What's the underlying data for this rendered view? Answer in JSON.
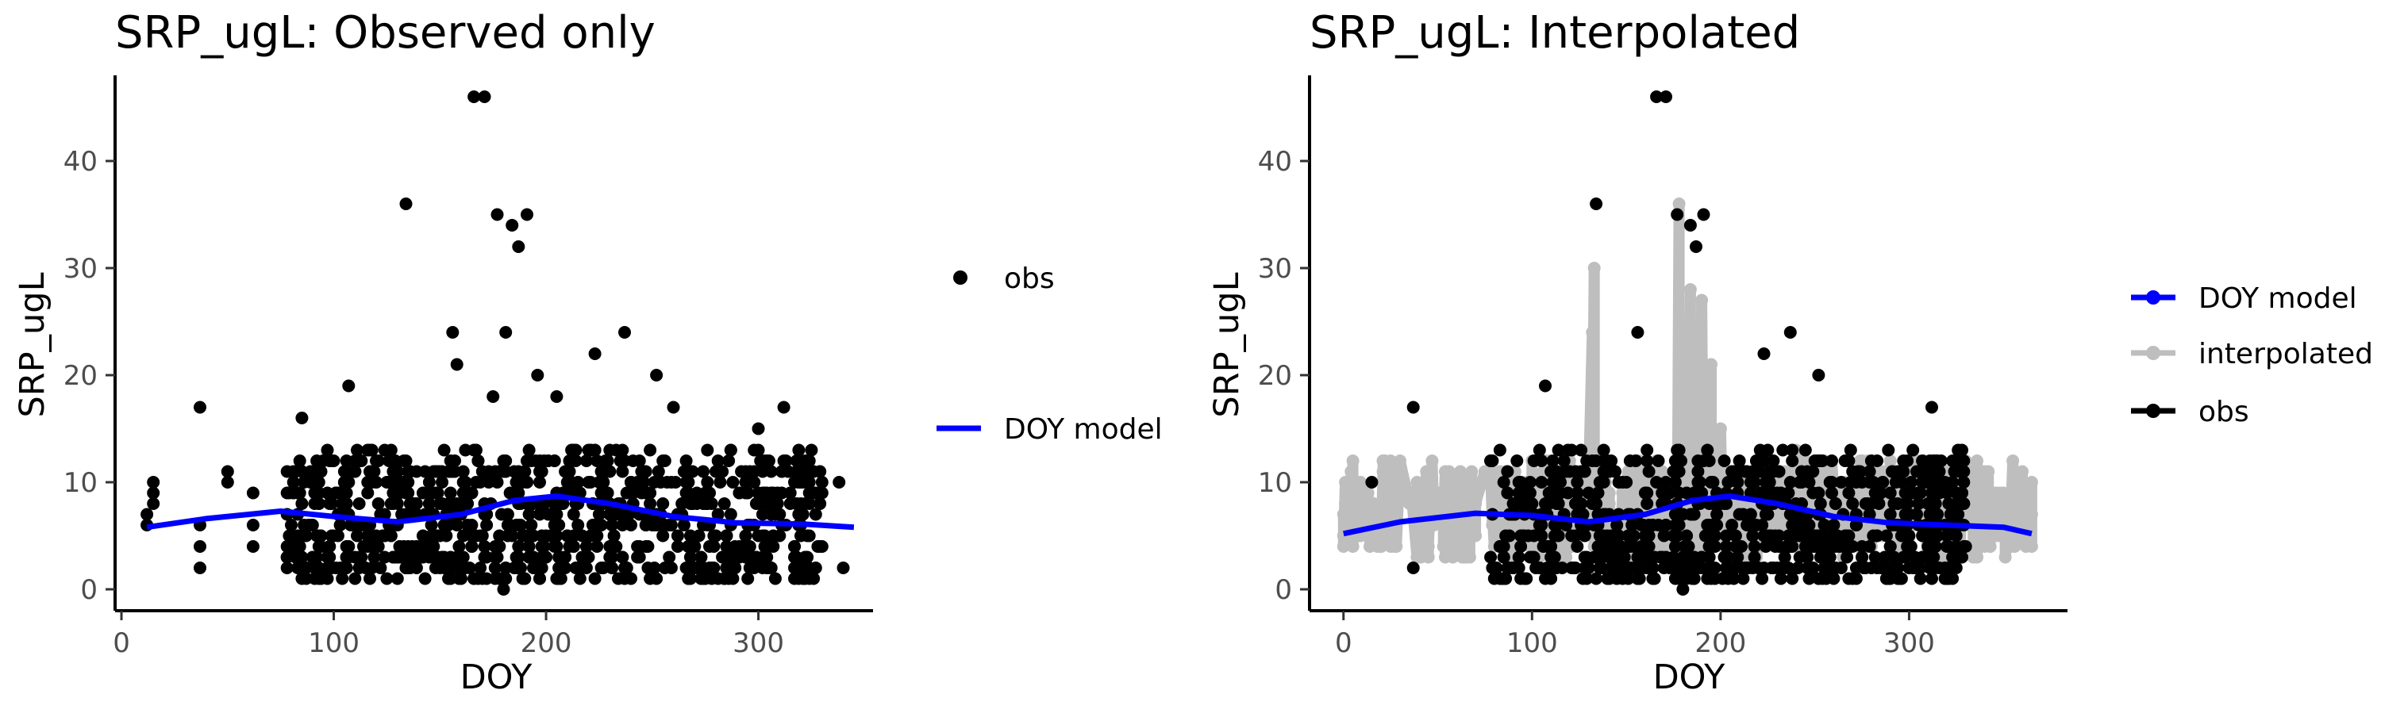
{
  "chart_data": [
    {
      "type": "scatter",
      "title": "SRP_ugL: Observed only",
      "xlabel": "DOY",
      "ylabel": "SRP_ugL",
      "xlim": [
        -3,
        354
      ],
      "ylim": [
        -2,
        48
      ],
      "x_ticks": [
        0,
        100,
        200,
        300
      ],
      "y_ticks": [
        0,
        10,
        20,
        30,
        40
      ],
      "grid": false,
      "legend_position": "right",
      "legend": [
        {
          "label": "obs",
          "kind": "point",
          "color": "#000000"
        },
        {
          "label": "DOY model",
          "kind": "line",
          "color": "#0000ff"
        }
      ],
      "series": [
        {
          "name": "obs",
          "color": "#000000",
          "points": [
            [
              12,
              6
            ],
            [
              12,
              7
            ],
            [
              15,
              8
            ],
            [
              15,
              9
            ],
            [
              15,
              10
            ],
            [
              37,
              2
            ],
            [
              37,
              4
            ],
            [
              37,
              6
            ],
            [
              37,
              17
            ],
            [
              50,
              11
            ],
            [
              50,
              10
            ],
            [
              62,
              9
            ],
            [
              62,
              4
            ],
            [
              62,
              6
            ],
            [
              78,
              3
            ],
            [
              78,
              9
            ],
            [
              85,
              16
            ],
            [
              98,
              4
            ],
            [
              100,
              12
            ],
            [
              107,
              19
            ],
            [
              134,
              36
            ],
            [
              156,
              24
            ],
            [
              158,
              21
            ],
            [
              166,
              46
            ],
            [
              171,
              46
            ],
            [
              177,
              35
            ],
            [
              184,
              34
            ],
            [
              187,
              32
            ],
            [
              191,
              35
            ],
            [
              181,
              24
            ],
            [
              223,
              22
            ],
            [
              237,
              24
            ],
            [
              252,
              20
            ],
            [
              312,
              17
            ],
            [
              338,
              10
            ],
            [
              340,
              2
            ],
            [
              180,
              0
            ],
            [
              196,
              20
            ],
            [
              175,
              18
            ],
            [
              205,
              18
            ],
            [
              260,
              17
            ],
            [
              300,
              15
            ]
          ],
          "band": {
            "x_from": 78,
            "x_to": 330,
            "y_from": 1,
            "y_to": 13,
            "n": 900
          }
        },
        {
          "name": "DOY model",
          "color": "#0000ff",
          "points": [
            [
              12,
              5.8
            ],
            [
              40,
              6.6
            ],
            [
              75,
              7.3
            ],
            [
              100,
              6.8
            ],
            [
              130,
              6.3
            ],
            [
              160,
              7.0
            ],
            [
              185,
              8.3
            ],
            [
              205,
              8.7
            ],
            [
              230,
              8.0
            ],
            [
              260,
              6.8
            ],
            [
              290,
              6.2
            ],
            [
              320,
              6.1
            ],
            [
              345,
              5.8
            ]
          ]
        }
      ]
    },
    {
      "type": "scatter",
      "title": "SRP_ugL: Interpolated",
      "xlabel": "DOY",
      "ylabel": "SRP_ugL",
      "xlim": [
        -18,
        384
      ],
      "ylim": [
        -2,
        48
      ],
      "x_ticks": [
        0,
        100,
        200,
        300
      ],
      "y_ticks": [
        0,
        10,
        20,
        30,
        40
      ],
      "grid": false,
      "legend_position": "right",
      "legend": [
        {
          "label": "DOY model",
          "kind": "line-point",
          "color": "#0000ff"
        },
        {
          "label": "interpolated",
          "kind": "line-point",
          "color": "#bebebe"
        },
        {
          "label": "obs",
          "kind": "line-point",
          "color": "#000000"
        }
      ],
      "series": [
        {
          "name": "interpolated",
          "color": "#bebebe",
          "points": [
            [
              0,
              5
            ],
            [
              0,
              7
            ],
            [
              0,
              4
            ],
            [
              5,
              6
            ],
            [
              20,
              6
            ],
            [
              60,
              8
            ],
            [
              90,
              7
            ],
            [
              133,
              30
            ],
            [
              132,
              24
            ],
            [
              178,
              36
            ],
            [
              184,
              28
            ],
            [
              190,
              27
            ],
            [
              195,
              21
            ],
            [
              180,
              17
            ],
            [
              200,
              15
            ],
            [
              240,
              13
            ],
            [
              295,
              10
            ],
            [
              340,
              6
            ],
            [
              360,
              5
            ],
            [
              365,
              7
            ],
            [
              365,
              4
            ]
          ],
          "band": {
            "x_from": 0,
            "x_to": 365,
            "y_from": 3,
            "y_to": 12,
            "n": 500
          }
        },
        {
          "name": "obs",
          "color": "#000000",
          "points": [
            [
              37,
              17
            ],
            [
              37,
              2
            ],
            [
              107,
              19
            ],
            [
              134,
              36
            ],
            [
              156,
              24
            ],
            [
              166,
              46
            ],
            [
              171,
              46
            ],
            [
              177,
              35
            ],
            [
              184,
              34
            ],
            [
              187,
              32
            ],
            [
              191,
              35
            ],
            [
              223,
              22
            ],
            [
              237,
              24
            ],
            [
              252,
              20
            ],
            [
              312,
              17
            ],
            [
              180,
              0
            ],
            [
              15,
              10
            ]
          ],
          "band": {
            "x_from": 78,
            "x_to": 330,
            "y_from": 1,
            "y_to": 13,
            "n": 800
          }
        },
        {
          "name": "DOY model",
          "color": "#0000ff",
          "points": [
            [
              0,
              5.2
            ],
            [
              30,
              6.3
            ],
            [
              70,
              7.1
            ],
            [
              100,
              6.9
            ],
            [
              130,
              6.3
            ],
            [
              160,
              7.0
            ],
            [
              185,
              8.3
            ],
            [
              205,
              8.7
            ],
            [
              230,
              8.0
            ],
            [
              260,
              6.8
            ],
            [
              290,
              6.2
            ],
            [
              320,
              6.0
            ],
            [
              350,
              5.8
            ],
            [
              365,
              5.2
            ]
          ]
        }
      ]
    }
  ]
}
